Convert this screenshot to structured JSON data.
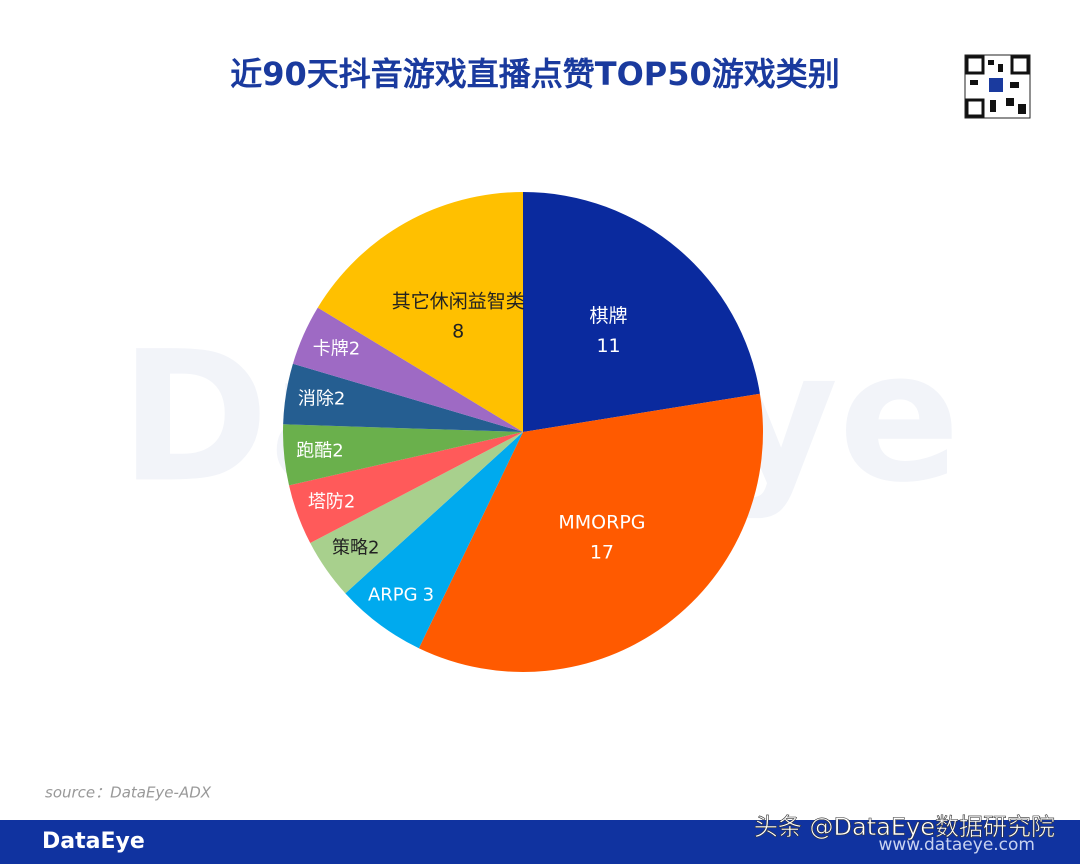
{
  "chart_data": {
    "type": "pie",
    "title": "近90天抖音游戏直播点赞TOP50游戏类别",
    "categories": [
      "棋牌",
      "MMORPG",
      "ARPG",
      "策略",
      "塔防",
      "跑酷",
      "消除",
      "卡牌",
      "其它休闲益智类"
    ],
    "values": [
      11,
      17,
      3,
      2,
      2,
      2,
      2,
      2,
      8
    ],
    "colors": [
      "#0a2a9e",
      "#ff5a00",
      "#00aaee",
      "#a8d08d",
      "#ff5a5a",
      "#6ab04c",
      "#255e91",
      "#9e6ac4",
      "#ffc000"
    ]
  },
  "source": "source：DataEye-ADX",
  "footer": {
    "logo": "DataEye",
    "website": "www.dataeye.com",
    "watermark": "头条 @DataEye数据研究院"
  }
}
